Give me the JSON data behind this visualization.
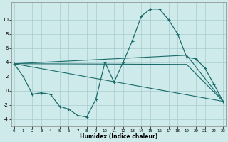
{
  "xlabel": "Humidex (Indice chaleur)",
  "bg_color": "#ceeaea",
  "grid_color": "#aacccc",
  "line_color": "#1a6b6b",
  "ylim": [
    -5,
    12.5
  ],
  "xlim": [
    -0.3,
    23.3
  ],
  "yticks": [
    -4,
    -2,
    0,
    2,
    4,
    6,
    8,
    10
  ],
  "xticks": [
    0,
    1,
    2,
    3,
    4,
    5,
    6,
    7,
    8,
    9,
    10,
    11,
    12,
    13,
    14,
    15,
    16,
    17,
    18,
    19,
    20,
    21,
    22,
    23
  ],
  "line1_x": [
    0,
    1,
    2,
    3,
    4,
    5,
    6,
    7,
    8,
    9,
    10,
    11,
    12,
    13,
    14,
    15,
    16,
    17,
    18,
    19,
    20,
    21,
    22,
    23
  ],
  "line1_y": [
    3.8,
    2.0,
    -0.5,
    -0.3,
    -0.5,
    -2.2,
    -2.6,
    -3.5,
    -3.7,
    -1.2,
    4.0,
    1.2,
    4.0,
    7.0,
    10.5,
    11.5,
    11.5,
    10.0,
    8.0,
    4.7,
    4.5,
    3.2,
    0.9,
    -1.5
  ],
  "line2_x": [
    0,
    23
  ],
  "line2_y": [
    3.8,
    -1.5
  ],
  "line3_x": [
    0,
    19,
    23
  ],
  "line3_y": [
    3.8,
    5.0,
    -1.5
  ],
  "line4_x": [
    0,
    19,
    23
  ],
  "line4_y": [
    3.8,
    3.7,
    -1.5
  ]
}
